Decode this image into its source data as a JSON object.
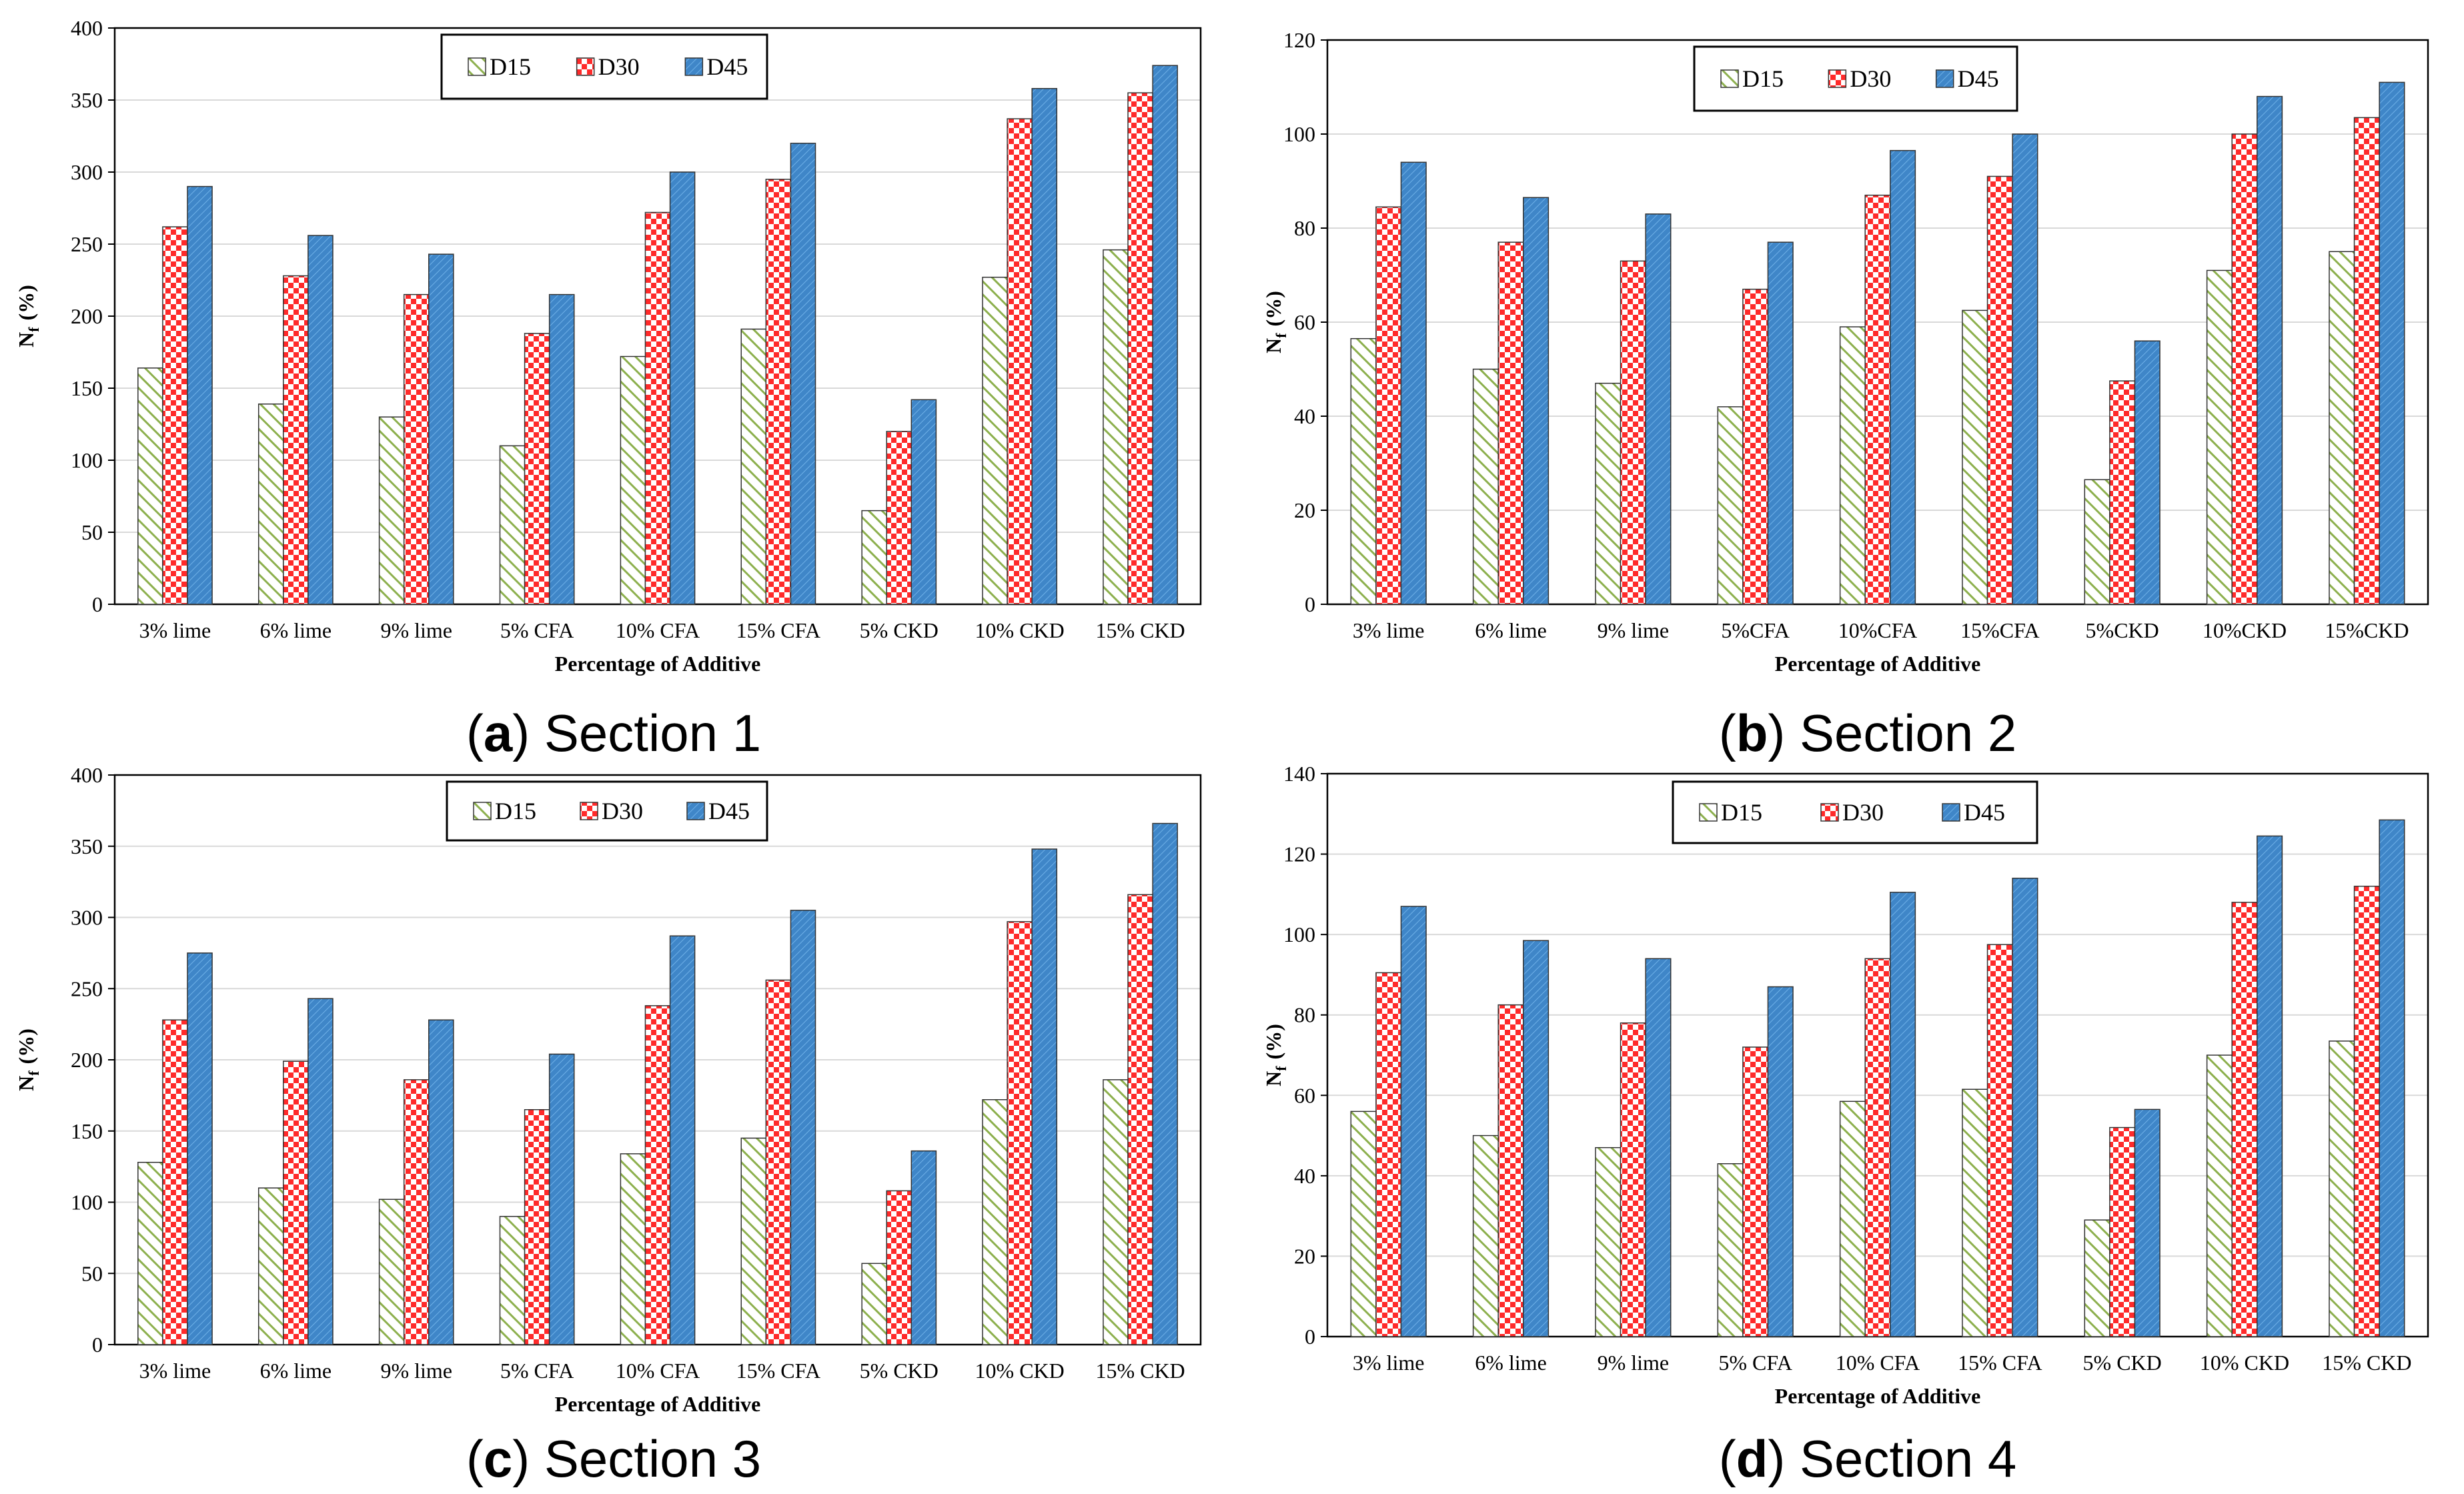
{
  "colors": {
    "D15_fill": "#ffffff",
    "D15_hatch": "#8db04e",
    "D30_fill": "#ff2a2a",
    "D30_check": "#ffffff",
    "D45_fill": "#3f86c8",
    "D45_hatch": "#6fb1e8",
    "bar_stroke": "#333333",
    "grid": "#d9d9d9"
  },
  "chart_data": [
    {
      "type": "bar",
      "caption_letter": "a",
      "caption_text": "Section 1",
      "xlabel": "Percentage of Additive",
      "ylabel_main": "N",
      "ylabel_sub": "f",
      "ylabel_unit": "(%)",
      "ylim": [
        0,
        400
      ],
      "yticks": [
        0,
        50,
        100,
        150,
        200,
        250,
        300,
        350,
        400
      ],
      "legend_position": "top-center",
      "categories": [
        "3% lime",
        "6% lime",
        "9% lime",
        "5% CFA",
        "10% CFA",
        "15% CFA",
        "5% CKD",
        "10% CKD",
        "15% CKD"
      ],
      "series": [
        {
          "name": "D15",
          "values": [
            164,
            139,
            130,
            110,
            172,
            191,
            65,
            227,
            246
          ]
        },
        {
          "name": "D30",
          "values": [
            262,
            228,
            215,
            188,
            272,
            295,
            120,
            337,
            355
          ]
        },
        {
          "name": "D45",
          "values": [
            290,
            256,
            243,
            215,
            300,
            320,
            142,
            358,
            374
          ]
        }
      ]
    },
    {
      "type": "bar",
      "caption_letter": "b",
      "caption_text": "Section 2",
      "xlabel": "Percentage of Additive",
      "ylabel_main": "N",
      "ylabel_sub": "f",
      "ylabel_unit": "(%)",
      "ylim": [
        0,
        120
      ],
      "yticks": [
        0,
        20,
        40,
        60,
        80,
        100,
        120
      ],
      "legend_position": "top-center",
      "categories": [
        "3% lime",
        "6% lime",
        "9% lime",
        "5%CFA",
        "10%CFA",
        "15%CFA",
        "5%CKD",
        "10%CKD",
        "15%CKD"
      ],
      "series": [
        {
          "name": "D15",
          "values": [
            56.5,
            50,
            47,
            42,
            59,
            62.5,
            26.5,
            71,
            75
          ]
        },
        {
          "name": "D30",
          "values": [
            84.5,
            77,
            73,
            67,
            87,
            91,
            47.5,
            100,
            103.5
          ]
        },
        {
          "name": "D45",
          "values": [
            94,
            86.5,
            83,
            77,
            96.5,
            100,
            56,
            108,
            111
          ]
        }
      ]
    },
    {
      "type": "bar",
      "caption_letter": "c",
      "caption_text": "Section 3",
      "xlabel": "Percentage of Additive",
      "ylabel_main": "N",
      "ylabel_sub": "f",
      "ylabel_unit": "(%)",
      "ylim": [
        0,
        400
      ],
      "yticks": [
        0,
        50,
        100,
        150,
        200,
        250,
        300,
        350,
        400
      ],
      "legend_position": "top-center",
      "categories": [
        "3% lime",
        "6% lime",
        "9% lime",
        "5% CFA",
        "10% CFA",
        "15% CFA",
        "5% CKD",
        "10% CKD",
        "15% CKD"
      ],
      "series": [
        {
          "name": "D15",
          "values": [
            128,
            110,
            102,
            90,
            134,
            145,
            57,
            172,
            186
          ]
        },
        {
          "name": "D30",
          "values": [
            228,
            199,
            186,
            165,
            238,
            256,
            108,
            297,
            316
          ]
        },
        {
          "name": "D45",
          "values": [
            275,
            243,
            228,
            204,
            287,
            305,
            136,
            348,
            366
          ]
        }
      ]
    },
    {
      "type": "bar",
      "caption_letter": "d",
      "caption_text": "Section 4",
      "xlabel": "Percentage of Additive",
      "ylabel_main": "N",
      "ylabel_sub": "f",
      "ylabel_unit": "(%)",
      "ylim": [
        0,
        140
      ],
      "yticks": [
        0,
        20,
        40,
        60,
        80,
        100,
        120,
        140
      ],
      "legend_position": "top-center",
      "categories": [
        "3% lime",
        "6% lime",
        "9% lime",
        "5% CFA",
        "10% CFA",
        "15% CFA",
        "5% CKD",
        "10% CKD",
        "15% CKD"
      ],
      "series": [
        {
          "name": "D15",
          "values": [
            56,
            50,
            47,
            43,
            58.5,
            61.5,
            29,
            70,
            73.5
          ]
        },
        {
          "name": "D30",
          "values": [
            90.5,
            82.5,
            78,
            72,
            94,
            97.5,
            52,
            108,
            112
          ]
        },
        {
          "name": "D45",
          "values": [
            107,
            98.5,
            94,
            87,
            110.5,
            114,
            56.5,
            124.5,
            128.5
          ]
        }
      ]
    }
  ]
}
